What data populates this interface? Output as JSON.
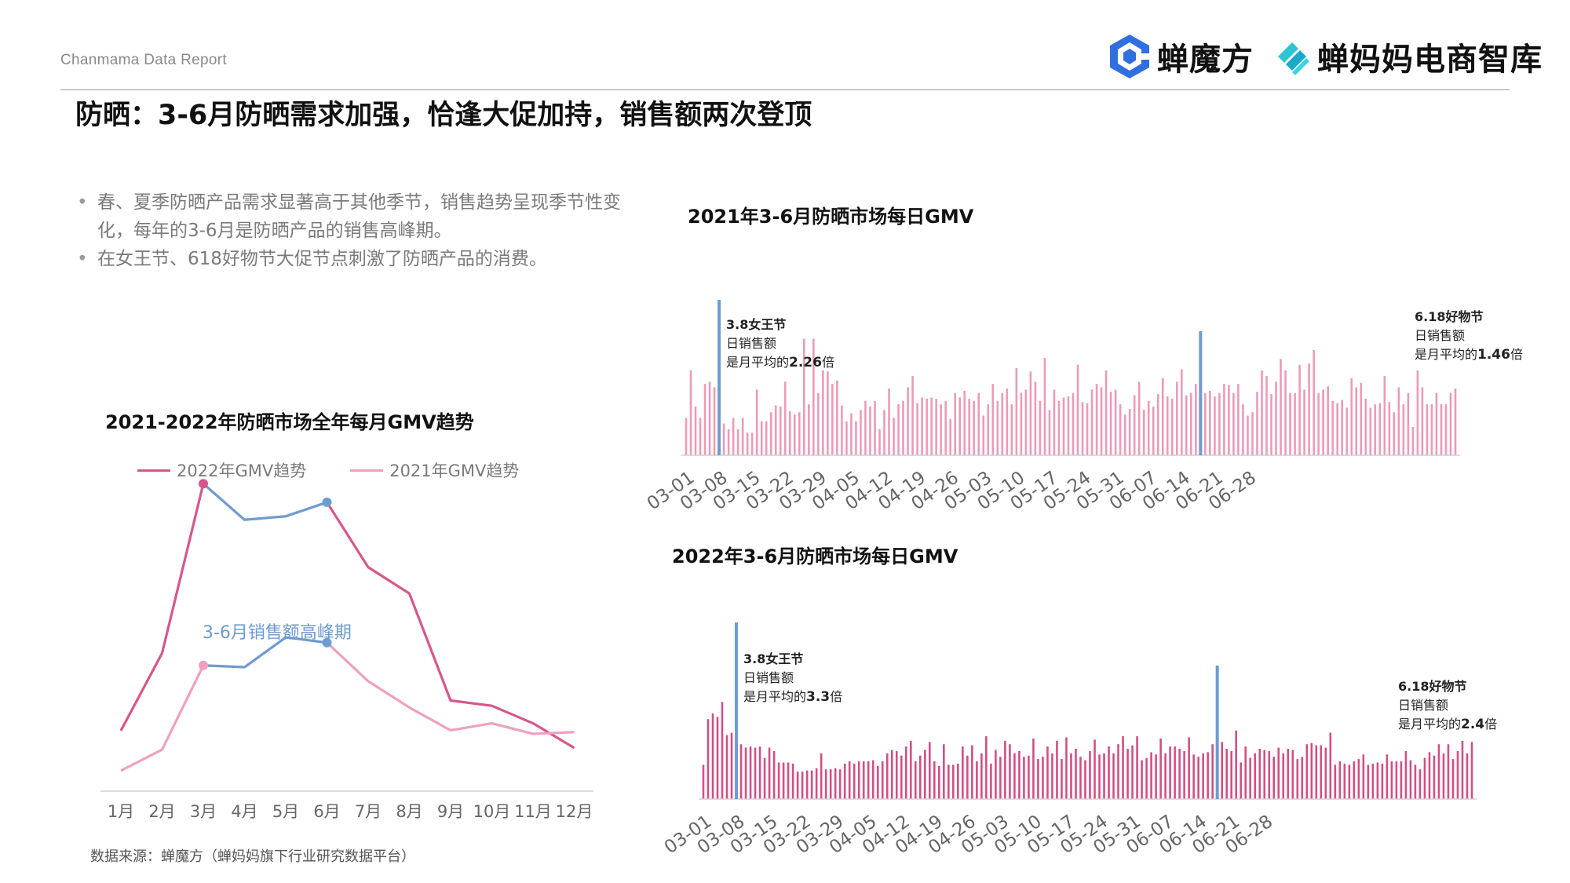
{
  "header": {
    "report_label": "Chanmama Data Report",
    "logo1_text": "蝉魔方",
    "logo2_text": "蝉妈妈电商智库"
  },
  "page_title": "防晒：3-6月防晒需求加强，恰逢大促加持，销售额两次登顶",
  "bullets": [
    "春、夏季防晒产品需求显著高于其他季节，销售趋势呈现季节性变化，每年的3-6月是防晒产品的销售高峰期。",
    "在女王节、618好物节大促节点刺激了防晒产品的消费。"
  ],
  "source": "数据来源：蝉魔方（蝉妈妈旗下行业研究数据平台）",
  "colors": {
    "pink_dark": "#d8568b",
    "pink_light": "#f0a0bf",
    "blue": "#6e9bd0",
    "bar": "#ec9ab8",
    "bar2022": "#d24f84"
  },
  "chart_data": [
    {
      "type": "line",
      "title": "2021-2022年防晒市场全年每月GMV趋势",
      "categories": [
        "1月",
        "2月",
        "3月",
        "4月",
        "5月",
        "6月",
        "7月",
        "8月",
        "9月",
        "10月",
        "11月",
        "12月"
      ],
      "series": [
        {
          "name": "2022年GMV趋势",
          "values": [
            15.9,
            38.0,
            86.3,
            76.0,
            77.0,
            81.0,
            62.5,
            55.0,
            24.5,
            23.0,
            18.0,
            11.0
          ]
        },
        {
          "name": "2021年GMV趋势",
          "values": [
            4.5,
            10.5,
            34.5,
            34.0,
            42.5,
            41.0,
            30.0,
            22.5,
            16.0,
            18.0,
            15.0,
            15.5
          ]
        }
      ],
      "highlight_range": [
        "3月",
        "6月"
      ],
      "highlight_label": "3-6月销售额高峰期",
      "ylim": [
        0,
        100
      ]
    },
    {
      "type": "bar",
      "title": "2021年3-6月防晒市场每日GMV",
      "x_ticks": [
        "03-01",
        "03-08",
        "03-15",
        "03-22",
        "03-29",
        "04-05",
        "04-12",
        "04-19",
        "04-26",
        "05-03",
        "05-10",
        "05-17",
        "05-24",
        "05-31",
        "06-07",
        "06-14",
        "06-21",
        "06-28"
      ],
      "values": [
        33,
        75,
        43,
        33,
        63,
        65,
        60,
        101,
        28,
        23,
        33,
        23,
        33,
        20,
        20,
        58,
        30,
        30,
        38,
        44,
        43,
        65,
        39,
        36,
        38,
        103,
        45,
        103,
        55,
        75,
        74,
        63,
        66,
        44,
        30,
        37,
        30,
        40,
        48,
        43,
        48,
        23,
        40,
        59,
        33,
        45,
        48,
        60,
        70,
        46,
        51,
        50,
        51,
        50,
        45,
        48,
        32,
        55,
        51,
        57,
        50,
        48,
        55,
        35,
        45,
        63,
        48,
        55,
        59,
        45,
        77,
        55,
        58,
        74,
        65,
        48,
        86,
        40,
        58,
        48,
        51,
        52,
        55,
        80,
        47,
        46,
        58,
        63,
        60,
        75,
        56,
        58,
        45,
        36,
        41,
        53,
        65,
        40,
        48,
        43,
        54,
        68,
        52,
        50,
        65,
        76,
        53,
        55,
        63,
        56,
        55,
        57,
        52,
        55,
        63,
        62,
        55,
        63,
        45,
        35,
        38,
        56,
        75,
        70,
        54,
        65,
        85,
        75,
        55,
        55,
        80,
        58,
        81,
        93,
        55,
        58,
        61,
        48,
        46,
        49,
        42,
        68,
        60,
        64,
        50,
        42,
        45,
        46,
        70,
        47,
        38,
        60,
        45,
        55,
        25,
        75,
        60,
        45,
        45,
        55,
        45,
        45,
        55,
        59
      ],
      "highlights": [
        {
          "date": "03-08",
          "lines": [
            "3.8女王节",
            "日销售额",
            "是月平均的",
            "2.26",
            "倍"
          ]
        },
        {
          "date": "06-18",
          "lines": [
            "6.18好物节",
            "日销售额",
            "是月平均的",
            "1.46",
            "倍"
          ]
        }
      ],
      "ylim": [
        0,
        120
      ]
    },
    {
      "type": "bar",
      "title": "2022年3-6月防晒市场每日GMV",
      "x_ticks": [
        "03-01",
        "03-08",
        "03-15",
        "03-22",
        "03-29",
        "04-05",
        "04-12",
        "04-19",
        "04-26",
        "05-03",
        "05-10",
        "05-17",
        "05-24",
        "05-31",
        "06-07",
        "06-14",
        "06-21",
        "06-28"
      ],
      "values": [
        30,
        70,
        75,
        72,
        85,
        56,
        58,
        39,
        48,
        45,
        46,
        45,
        46,
        36,
        45,
        42,
        32,
        32,
        32,
        31,
        24,
        24,
        25,
        25,
        27,
        40,
        26,
        26,
        27,
        26,
        31,
        33,
        31,
        33,
        33,
        33,
        34,
        29,
        33,
        40,
        43,
        42,
        38,
        46,
        51,
        33,
        38,
        43,
        50,
        33,
        29,
        48,
        30,
        30,
        31,
        46,
        38,
        47,
        33,
        40,
        55,
        31,
        43,
        37,
        51,
        48,
        40,
        42,
        37,
        38,
        53,
        35,
        37,
        46,
        40,
        51,
        35,
        54,
        40,
        44,
        37,
        34,
        42,
        52,
        39,
        40,
        46,
        40,
        48,
        55,
        44,
        47,
        55,
        34,
        36,
        41,
        39,
        53,
        40,
        46,
        46,
        44,
        42,
        54,
        39,
        37,
        40,
        41,
        48,
        37,
        50,
        44,
        42,
        60,
        32,
        46,
        36,
        40,
        44,
        43,
        42,
        37,
        45,
        40,
        44,
        43,
        35,
        37,
        48,
        49,
        47,
        47,
        45,
        58,
        30,
        33,
        31,
        30,
        33,
        35,
        39,
        30,
        31,
        32,
        31,
        39,
        33,
        33,
        33,
        42,
        34,
        30,
        26,
        36,
        41,
        38,
        48,
        40,
        48,
        35,
        42,
        51,
        40,
        50
      ],
      "highlights": [
        {
          "date": "03-08",
          "lines": [
            "3.8女王节",
            "日销售额",
            "是月平均的",
            "3.3",
            "倍"
          ]
        },
        {
          "date": "06-18",
          "lines": [
            "6.18好物节",
            "日销售额",
            "是月平均的",
            "2.4",
            "倍"
          ]
        }
      ],
      "ylim": [
        0,
        110
      ]
    }
  ]
}
